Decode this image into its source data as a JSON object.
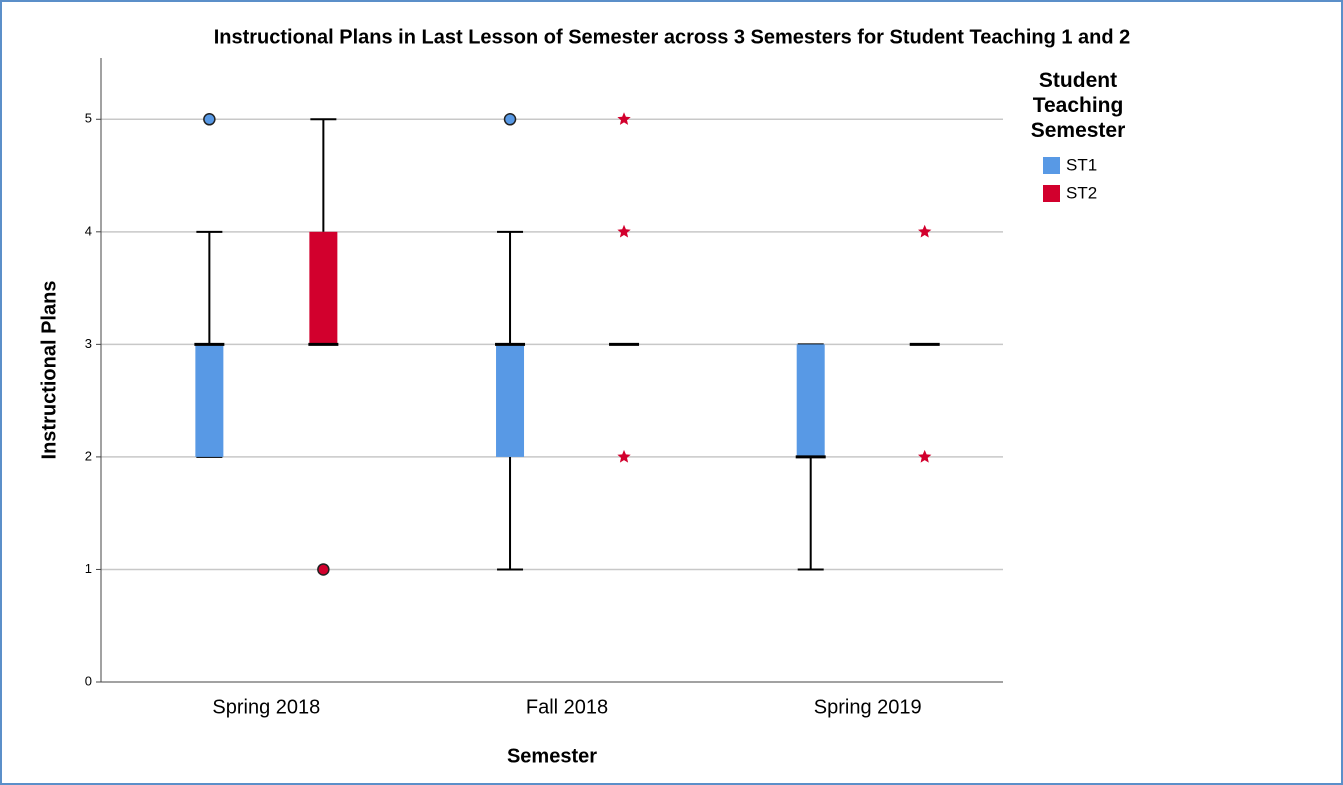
{
  "chart_data": {
    "type": "boxplot",
    "title": "Instructional Plans in Last Lesson of Semester across 3 Semesters for Student Teaching 1 and 2",
    "x_label": "Semester",
    "y_label": "Instructional Plans",
    "categories": [
      "Spring 2018",
      "Fall 2018",
      "Spring 2019"
    ],
    "legend_title": "Student Teaching Semester",
    "series": [
      {
        "name": "ST1",
        "color": "#5899e5",
        "min": [
          2,
          1,
          1
        ],
        "q1": [
          2,
          2,
          2
        ],
        "median": [
          3,
          3,
          2
        ],
        "q3": [
          3,
          3,
          3
        ],
        "max": [
          4,
          4,
          3
        ],
        "outliers": [
          [
            5
          ],
          [
            5
          ],
          []
        ],
        "extremes": [
          [],
          [],
          []
        ]
      },
      {
        "name": "ST2",
        "color": "#d2002d",
        "min": [
          3,
          3,
          3
        ],
        "q1": [
          3,
          3,
          3
        ],
        "median": [
          3,
          3,
          3
        ],
        "q3": [
          4,
          3,
          3
        ],
        "max": [
          5,
          3,
          3
        ],
        "outliers": [
          [
            1
          ],
          [],
          []
        ],
        "extremes": [
          [],
          [
            5,
            4,
            2
          ],
          [
            4,
            2
          ]
        ]
      }
    ],
    "ylim": [
      0,
      5.5
    ],
    "yticks": [
      0,
      1,
      2,
      3,
      4,
      5
    ],
    "grid": true
  }
}
